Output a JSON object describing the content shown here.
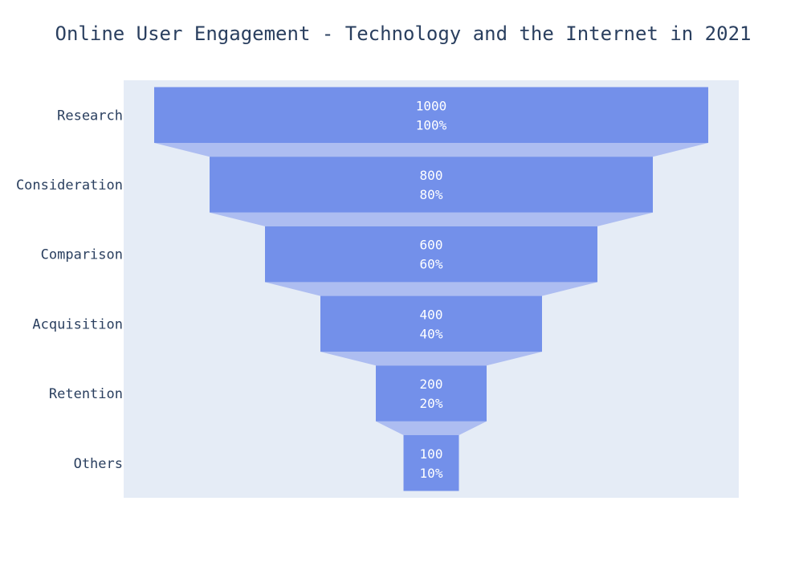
{
  "colors": {
    "plot_background": "#e5ecf6",
    "bar": "#7390ea",
    "connector": "#adbdf1",
    "text": "#2a3f5f",
    "bar_text": "#ffffff"
  },
  "chart_data": {
    "type": "funnel",
    "title": "Online User Engagement - Technology and the Internet in 2021",
    "categories": [
      "Research",
      "Consideration",
      "Comparison",
      "Acquisition",
      "Retention",
      "Others"
    ],
    "values": [
      1000,
      800,
      600,
      400,
      200,
      100
    ],
    "percent_labels": [
      "100%",
      "80%",
      "60%",
      "40%",
      "20%",
      "10%"
    ],
    "grid": false,
    "legend": "none"
  }
}
